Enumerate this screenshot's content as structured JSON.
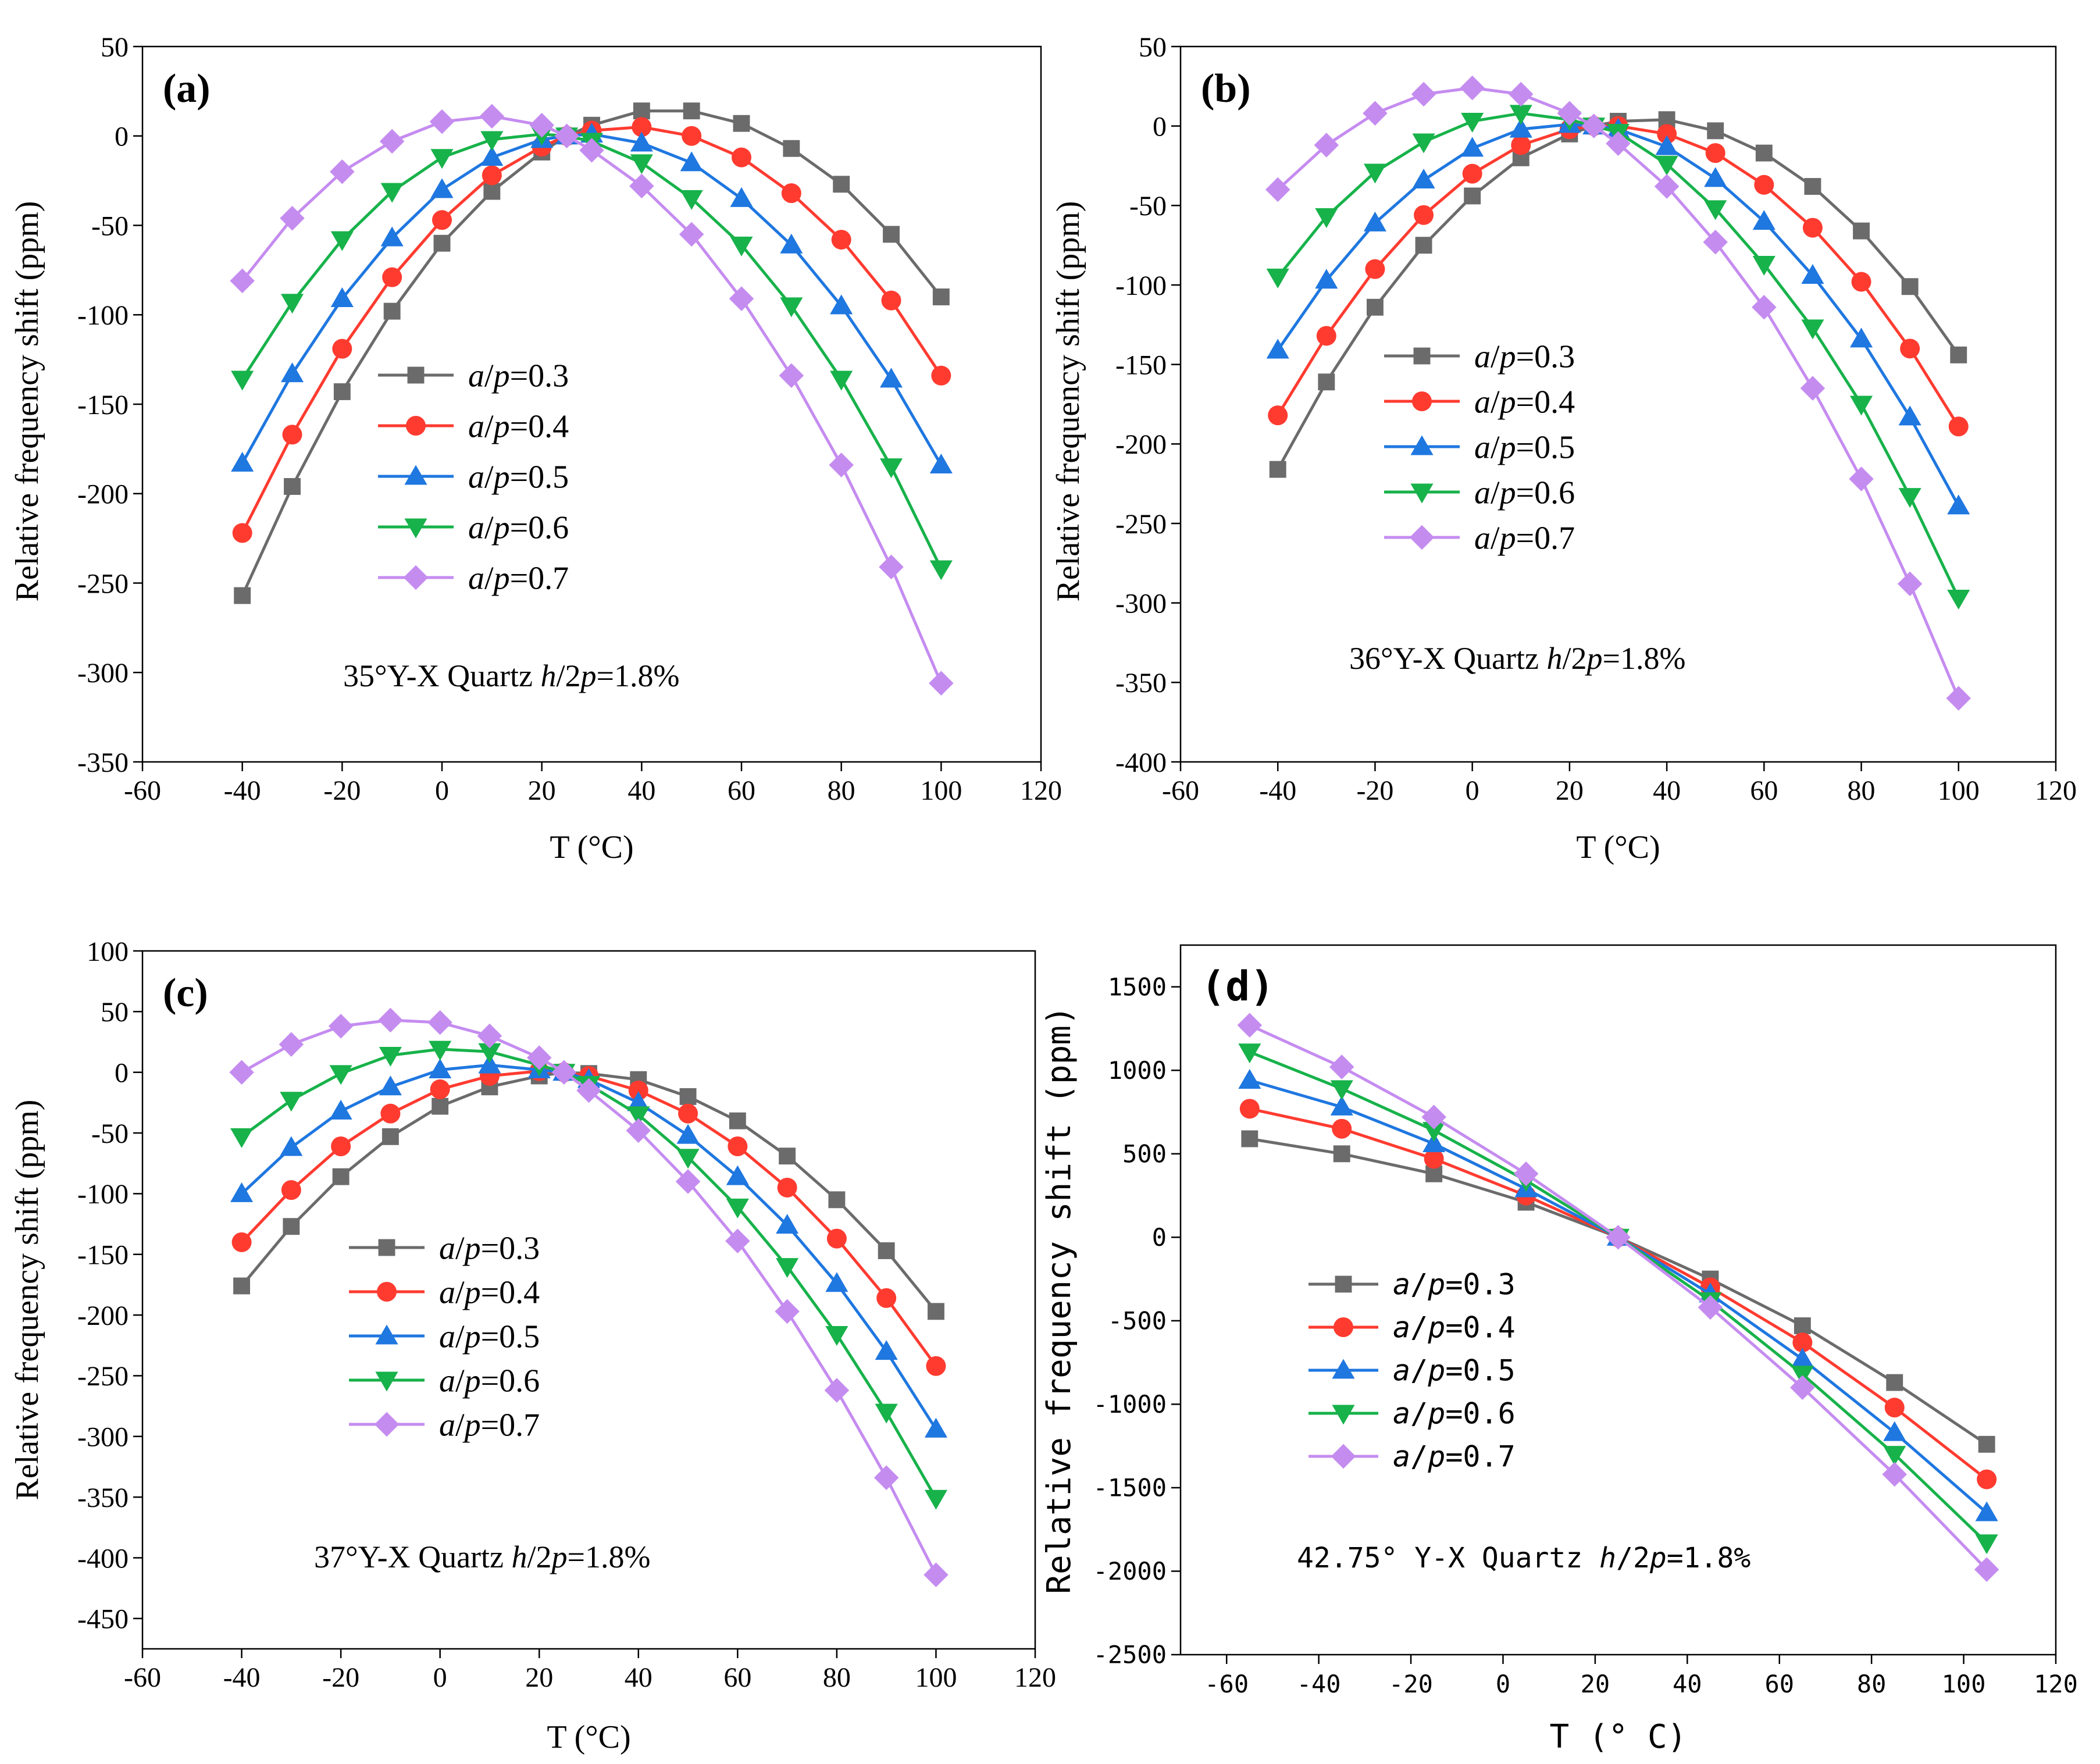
{
  "chart_data": [
    {
      "panel_label": "(a)",
      "type": "line",
      "xlabel": "T (°C)",
      "ylabel": "Relative frequency shift (ppm)",
      "xlim": [
        -60,
        120
      ],
      "ylim": [
        -350,
        50
      ],
      "xticks": [
        -60,
        -40,
        -20,
        0,
        20,
        40,
        60,
        80,
        100,
        120
      ],
      "yticks": [
        50,
        0,
        -50,
        -100,
        -150,
        -200,
        -250,
        -300,
        -350
      ],
      "annotation": "35°Y-X Quartz h/2p=1.8%",
      "x": [
        -40,
        -30,
        -20,
        -10,
        0,
        10,
        20,
        25,
        30,
        40,
        50,
        60,
        70,
        80,
        90,
        100
      ],
      "legend_placement": "center",
      "series": [
        {
          "name": "a/p=0.3",
          "color": "#6b6b6b",
          "marker": "square",
          "values": [
            -257,
            -196,
            -143,
            -98,
            -60,
            -31,
            -9,
            0,
            6,
            14,
            14,
            7,
            -7,
            -27,
            -55,
            -90
          ]
        },
        {
          "name": "a/p=0.4",
          "color": "#ff3b30",
          "marker": "circle",
          "values": [
            -222,
            -167,
            -119,
            -79,
            -47,
            -22,
            -6,
            0,
            3,
            5,
            0,
            -12,
            -32,
            -58,
            -92,
            -134
          ]
        },
        {
          "name": "a/p=0.5",
          "color": "#1f77e0",
          "marker": "triangle-up",
          "values": [
            -183,
            -133,
            -91,
            -57,
            -30,
            -12,
            -2,
            0,
            1,
            -4,
            -15,
            -35,
            -61,
            -95,
            -136,
            -184
          ]
        },
        {
          "name": "a/p=0.6",
          "color": "#17b24a",
          "marker": "triangle-down",
          "values": [
            -136,
            -93,
            -58,
            -31,
            -12,
            -2,
            1,
            0,
            -3,
            -15,
            -35,
            -61,
            -95,
            -136,
            -185,
            -242
          ]
        },
        {
          "name": "a/p=0.7",
          "color": "#c58cf0",
          "marker": "diamond",
          "values": [
            -81,
            -46,
            -20,
            -3,
            8,
            11,
            6,
            0,
            -8,
            -28,
            -55,
            -91,
            -134,
            -184,
            -241,
            -306
          ]
        }
      ]
    },
    {
      "panel_label": "(b)",
      "type": "line",
      "xlabel": "T (°C)",
      "ylabel": "Relative frequency shift (ppm)",
      "xlim": [
        -60,
        120
      ],
      "ylim": [
        -400,
        50
      ],
      "xticks": [
        -60,
        -40,
        -20,
        0,
        20,
        40,
        60,
        80,
        100,
        120
      ],
      "yticks": [
        50,
        0,
        -50,
        -100,
        -150,
        -200,
        -250,
        -300,
        -350,
        -400
      ],
      "annotation": "36°Y-X Quartz h/2p=1.8%",
      "x": [
        -40,
        -30,
        -20,
        -10,
        0,
        10,
        20,
        25,
        30,
        40,
        50,
        60,
        70,
        80,
        90,
        100
      ],
      "legend_placement": "right",
      "series": [
        {
          "name": "a/p=0.3",
          "color": "#6b6b6b",
          "marker": "square",
          "values": [
            -216,
            -161,
            -114,
            -75,
            -44,
            -20,
            -5,
            0,
            3,
            4,
            -3,
            -17,
            -38,
            -66,
            -101,
            -144
          ]
        },
        {
          "name": "a/p=0.4",
          "color": "#ff3b30",
          "marker": "circle",
          "values": [
            -182,
            -132,
            -90,
            -56,
            -30,
            -12,
            -2,
            0,
            0,
            -5,
            -17,
            -37,
            -64,
            -98,
            -140,
            -189
          ]
        },
        {
          "name": "a/p=0.5",
          "color": "#1f77e0",
          "marker": "triangle-up",
          "values": [
            -141,
            -97,
            -61,
            -34,
            -14,
            -2,
            1,
            0,
            -2,
            -13,
            -33,
            -60,
            -94,
            -134,
            -183,
            -239
          ]
        },
        {
          "name": "a/p=0.6",
          "color": "#17b24a",
          "marker": "triangle-down",
          "values": [
            -95,
            -57,
            -29,
            -10,
            3,
            8,
            4,
            0,
            -4,
            -24,
            -52,
            -87,
            -127,
            -175,
            -233,
            -297
          ]
        },
        {
          "name": "a/p=0.7",
          "color": "#c58cf0",
          "marker": "diamond",
          "values": [
            -40,
            -12,
            8,
            20,
            24,
            20,
            8,
            0,
            -11,
            -38,
            -73,
            -114,
            -165,
            -222,
            -288,
            -360
          ]
        }
      ]
    },
    {
      "panel_label": "(c)",
      "type": "line",
      "xlabel": "T (°C)",
      "ylabel": "Relative frequency shift (ppm)",
      "xlim": [
        -60,
        120
      ],
      "ylim": [
        -475,
        100
      ],
      "xticks": [
        -60,
        -40,
        -20,
        0,
        20,
        40,
        60,
        80,
        100,
        120
      ],
      "yticks": [
        100,
        50,
        0,
        -50,
        -100,
        -150,
        -200,
        -250,
        -300,
        -350,
        -400,
        -450
      ],
      "annotation": "37°Y-X Quartz h/2p=1.8%",
      "x": [
        -40,
        -30,
        -20,
        -10,
        0,
        10,
        20,
        25,
        30,
        40,
        50,
        60,
        70,
        80,
        90,
        100
      ],
      "legend_placement": "center",
      "series": [
        {
          "name": "a/p=0.3",
          "color": "#6b6b6b",
          "marker": "square",
          "values": [
            -176,
            -127,
            -86,
            -53,
            -28,
            -12,
            -3,
            0,
            -1,
            -6,
            -20,
            -40,
            -69,
            -105,
            -147,
            -197
          ]
        },
        {
          "name": "a/p=0.4",
          "color": "#ff3b30",
          "marker": "circle",
          "values": [
            -140,
            -97,
            -61,
            -34,
            -14,
            -3,
            1,
            0,
            -3,
            -15,
            -34,
            -61,
            -95,
            -137,
            -186,
            -242
          ]
        },
        {
          "name": "a/p=0.5",
          "color": "#1f77e0",
          "marker": "triangle-up",
          "values": [
            -100,
            -62,
            -32,
            -12,
            2,
            6,
            2,
            0,
            -6,
            -25,
            -52,
            -86,
            -126,
            -174,
            -230,
            -294
          ]
        },
        {
          "name": "a/p=0.6",
          "color": "#17b24a",
          "marker": "triangle-down",
          "values": [
            -53,
            -23,
            -1,
            14,
            19,
            17,
            6,
            0,
            -10,
            -35,
            -70,
            -111,
            -160,
            -216,
            -280,
            -351
          ]
        },
        {
          "name": "a/p=0.7",
          "color": "#c58cf0",
          "marker": "diamond",
          "values": [
            0,
            23,
            38,
            43,
            41,
            30,
            12,
            0,
            -15,
            -48,
            -90,
            -139,
            -197,
            -262,
            -334,
            -414
          ]
        }
      ]
    },
    {
      "panel_label": "(d)",
      "type": "line",
      "xlabel": "T (° C)",
      "ylabel": "Relative frequency shift (ppm)",
      "xlim": [
        -70,
        120
      ],
      "ylim": [
        -2500,
        1750
      ],
      "xticks": [
        -60,
        -40,
        -20,
        0,
        20,
        40,
        60,
        80,
        100,
        120
      ],
      "yticks": [
        1500,
        1000,
        500,
        0,
        -500,
        -1000,
        -1500,
        -2000,
        -2500
      ],
      "annotation": "42.75° Y-X Quartz h/2p=1.8%",
      "x": [
        -55,
        -35,
        -15,
        5,
        25,
        45,
        65,
        85,
        105
      ],
      "legend_placement": "left-center",
      "series": [
        {
          "name": "a/p=0.3",
          "color": "#6b6b6b",
          "marker": "square",
          "values": [
            590,
            500,
            380,
            210,
            0,
            -250,
            -530,
            -870,
            -1240
          ]
        },
        {
          "name": "a/p=0.4",
          "color": "#ff3b30",
          "marker": "circle",
          "values": [
            770,
            650,
            470,
            250,
            0,
            -300,
            -630,
            -1020,
            -1450
          ]
        },
        {
          "name": "a/p=0.5",
          "color": "#1f77e0",
          "marker": "triangle-up",
          "values": [
            940,
            780,
            560,
            290,
            0,
            -340,
            -730,
            -1170,
            -1650
          ]
        },
        {
          "name": "a/p=0.6",
          "color": "#17b24a",
          "marker": "triangle-down",
          "values": [
            1110,
            890,
            640,
            340,
            0,
            -380,
            -820,
            -1300,
            -1830
          ]
        },
        {
          "name": "a/p=0.7",
          "color": "#c58cf0",
          "marker": "diamond",
          "values": [
            1270,
            1020,
            720,
            380,
            0,
            -420,
            -900,
            -1420,
            -1990
          ]
        }
      ]
    }
  ]
}
